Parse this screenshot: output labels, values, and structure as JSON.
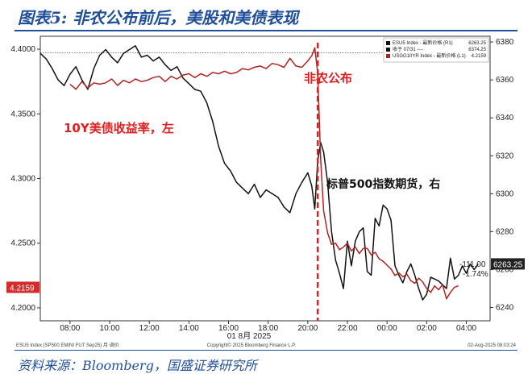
{
  "header": {
    "title": "图表5: 非农公布前后，美股和美债表现"
  },
  "footer": {
    "source": "资料来源：Bloomberg，国盛证券研究所"
  },
  "chart_data": {
    "type": "line",
    "x_ticks": [
      "08:00",
      "10:00",
      "12:00",
      "14:00",
      "16:00",
      "18:00",
      "20:00",
      "22:00",
      "00:00",
      "02:00",
      "04:00"
    ],
    "x_date_label": "01 8月 2025",
    "left_axis": {
      "ticks": [
        "4.4000",
        "4.3500",
        "4.3000",
        "4.2500",
        "4.2000"
      ],
      "ylim": [
        4.19,
        4.41
      ]
    },
    "right_axis": {
      "ticks": [
        "6380",
        "6360",
        "6340",
        "6320",
        "6300",
        "6280",
        "6260",
        "6240"
      ],
      "ylim": [
        6233,
        6383
      ]
    },
    "legend": [
      {
        "label": "ESU5 Index - 最新价格 (R1)",
        "value": "6263.25",
        "color": "#111111"
      },
      {
        "label": "收于 07/31 ----",
        "value": "6374.25",
        "color": "#111111"
      },
      {
        "label": "USGG10YR Index - 最新价格 (L1)",
        "value": "4.2159",
        "color": "#b22222"
      }
    ],
    "annotations": {
      "release": "非农公布",
      "yield_label": "10Y美债收益率，左",
      "spx_label": "标普500指数期货，右"
    },
    "end_labels": {
      "spx_change": "-111.00",
      "spx_pct": "-1.74%",
      "spx_last": "6263.25",
      "yield_last": "4.2159"
    },
    "bloomberg_meta": {
      "left": "ESU5 Index (SP500 EMINI FUT Sep25) 月 调价",
      "center": "Copyright© 2025 Bloomberg Finance L.P.",
      "right": "02-Aug-2025 08:03:24"
    },
    "series": [
      {
        "axis": "right",
        "color": "#111111",
        "x": [
          6.5,
          6.8,
          7.1,
          7.4,
          7.7,
          8.0,
          8.3,
          8.6,
          8.9,
          9.2,
          9.5,
          9.8,
          10.1,
          10.4,
          10.7,
          11.0,
          11.3,
          11.6,
          11.9,
          12.2,
          12.5,
          12.8,
          13.1,
          13.4,
          13.7,
          14.0,
          14.3,
          14.6,
          14.9,
          15.2,
          15.5,
          15.8,
          16.1,
          16.4,
          16.7,
          17.0,
          17.3,
          17.6,
          17.9,
          18.2,
          18.5,
          18.8,
          19.1,
          19.4,
          19.7,
          20.0,
          20.2,
          20.35,
          20.5,
          20.65,
          20.8,
          21.0,
          21.2,
          21.4,
          21.6,
          21.8,
          22.0,
          22.2,
          22.4,
          22.6,
          22.8,
          23.0,
          23.2,
          23.4,
          23.6,
          23.8,
          24.0,
          24.2,
          24.4,
          24.6,
          24.8,
          25.0,
          25.2,
          25.4,
          25.6,
          25.8,
          26.0,
          26.2,
          26.4,
          26.6,
          26.8,
          27.0,
          27.2,
          27.4,
          27.6,
          27.8,
          28.0,
          28.2,
          28.4,
          28.6
        ],
        "values": [
          6374,
          6371,
          6366,
          6360,
          6357,
          6363,
          6367,
          6360,
          6355,
          6366,
          6373,
          6376,
          6372,
          6369,
          6374,
          6376,
          6378,
          6372,
          6373,
          6370,
          6372,
          6368,
          6365,
          6367,
          6361,
          6358,
          6355,
          6354,
          6348,
          6338,
          6325,
          6316,
          6312,
          6306,
          6303,
          6300,
          6305,
          6298,
          6302,
          6300,
          6298,
          6293,
          6290,
          6300,
          6306,
          6311,
          6304,
          6292,
          6317,
          6327,
          6322,
          6306,
          6280,
          6265,
          6258,
          6250,
          6275,
          6262,
          6275,
          6280,
          6282,
          6259,
          6257,
          6287,
          6283,
          6294,
          6292,
          6286,
          6262,
          6257,
          6253,
          6259,
          6263,
          6257,
          6250,
          6244,
          6247,
          6256,
          6255,
          6254,
          6252,
          6250,
          6266,
          6255,
          6257,
          6262,
          6258,
          6263,
          6260,
          6263
        ]
      },
      {
        "axis": "left",
        "color": "#b22222",
        "x": [
          8.0,
          8.3,
          8.6,
          8.9,
          9.2,
          9.5,
          9.8,
          10.1,
          10.4,
          10.7,
          11.0,
          11.3,
          11.6,
          11.9,
          12.2,
          12.5,
          12.8,
          13.1,
          13.4,
          13.7,
          14.0,
          14.3,
          14.6,
          14.9,
          15.2,
          15.5,
          15.8,
          16.1,
          16.4,
          16.7,
          17.0,
          17.3,
          17.6,
          17.9,
          18.2,
          18.5,
          18.8,
          19.1,
          19.4,
          19.7,
          20.0,
          20.2,
          20.35,
          20.5,
          20.65,
          20.8,
          21.0,
          21.2,
          21.4,
          21.6,
          21.8,
          22.0,
          22.2,
          22.4,
          22.6,
          22.8,
          23.0,
          23.2,
          23.4,
          23.6,
          23.8,
          24.0,
          24.2,
          24.4,
          24.6,
          24.8,
          25.0,
          25.2,
          25.4,
          25.6,
          25.8,
          26.0,
          26.2,
          26.4,
          26.6,
          26.8,
          27.0,
          27.2,
          27.4,
          27.6
        ],
        "values": [
          4.373,
          4.369,
          4.375,
          4.37,
          4.374,
          4.373,
          4.374,
          4.377,
          4.372,
          4.376,
          4.374,
          4.377,
          4.375,
          4.376,
          4.378,
          4.379,
          4.375,
          4.379,
          4.377,
          4.38,
          4.381,
          4.378,
          4.381,
          4.379,
          4.382,
          4.381,
          4.383,
          4.381,
          4.382,
          4.385,
          4.384,
          4.386,
          4.387,
          4.385,
          4.389,
          4.388,
          4.386,
          4.393,
          4.387,
          4.386,
          4.391,
          4.395,
          4.401,
          4.382,
          4.315,
          4.275,
          4.258,
          4.249,
          4.25,
          4.245,
          4.247,
          4.25,
          4.244,
          4.247,
          4.242,
          4.246,
          4.246,
          4.241,
          4.243,
          4.238,
          4.236,
          4.233,
          4.23,
          4.225,
          4.227,
          4.224,
          4.226,
          4.221,
          4.219,
          4.223,
          4.22,
          4.215,
          4.212,
          4.217,
          4.214,
          4.218,
          4.207,
          4.212,
          4.216,
          4.217
        ]
      }
    ]
  }
}
